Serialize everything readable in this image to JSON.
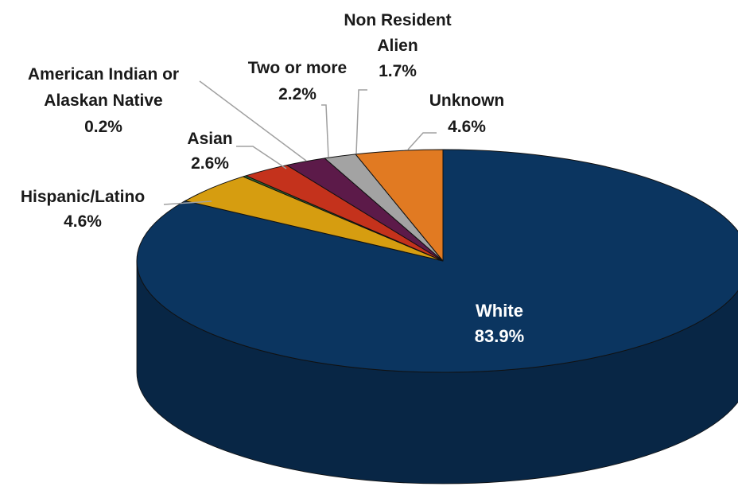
{
  "chart_data": {
    "type": "pie",
    "style": "3d",
    "title": "",
    "slices": [
      {
        "label": "White",
        "value": 83.9,
        "display": "83.9%",
        "color": "#0b3560",
        "label_lines": [
          "White"
        ]
      },
      {
        "label": "Hispanic/Latino",
        "value": 4.6,
        "display": "4.6%",
        "color": "#d69d10",
        "label_lines": [
          "Hispanic/Latino"
        ]
      },
      {
        "label": "American Indian or Alaskan Native",
        "value": 0.2,
        "display": "0.2%",
        "color": "#2e6b2e",
        "label_lines": [
          "American Indian or",
          "Alaskan Native"
        ]
      },
      {
        "label": "Asian",
        "value": 2.6,
        "display": "2.6%",
        "color": "#c4321c",
        "label_lines": [
          "Asian"
        ]
      },
      {
        "label": "Two or more",
        "value": 2.2,
        "display": "2.2%",
        "color": "#5c1a49",
        "label_lines": [
          "Two or more"
        ]
      },
      {
        "label": "Non Resident Alien",
        "value": 1.7,
        "display": "1.7%",
        "color": "#a3a3a3",
        "label_lines": [
          "Non Resident",
          "Alien"
        ]
      },
      {
        "label": "Unknown",
        "value": 4.6,
        "display": "4.6%",
        "color": "#e17a22",
        "label_lines": [
          "Unknown"
        ]
      }
    ]
  }
}
